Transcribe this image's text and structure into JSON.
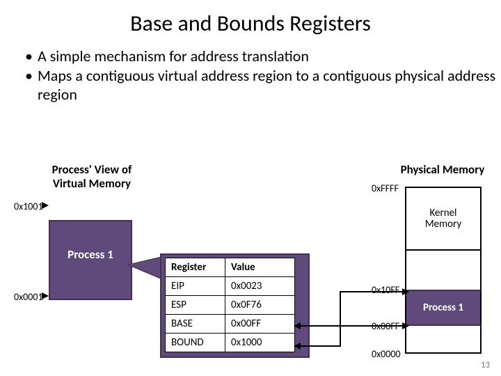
{
  "title": "Base and Bounds Registers",
  "bullets": [
    "A simple mechanism for address translation",
    "Maps a contiguous virtual address region to a contiguous physical address region"
  ],
  "virtualMemory": {
    "heading": "Process' View of\nVirtual Memory",
    "topAddr": "0x1001",
    "bottomAddr": "0x0001",
    "processLabel": "Process 1",
    "blockColor": "#604a7b",
    "blockBorder": "#403152"
  },
  "registers": {
    "columns": [
      "Register",
      "Value"
    ],
    "rows": [
      [
        "EIP",
        "0x0023"
      ],
      [
        "ESP",
        "0x0F76"
      ],
      [
        "BASE",
        "0x00FF"
      ],
      [
        "BOUND",
        "0x1000"
      ]
    ]
  },
  "physicalMemory": {
    "heading": "Physical Memory",
    "labels": {
      "top": "0xFFFF",
      "p1top": "0x10FF",
      "p1bot": "0x00FF",
      "bottom": "0x0000"
    },
    "kernelLabel": "Kernel\nMemory",
    "processLabel": "Process 1"
  },
  "slideNumber": "13",
  "colors": {
    "purple": "#604a7b",
    "purpleDark": "#403152",
    "text": "#000000",
    "bg": "#ffffff"
  }
}
